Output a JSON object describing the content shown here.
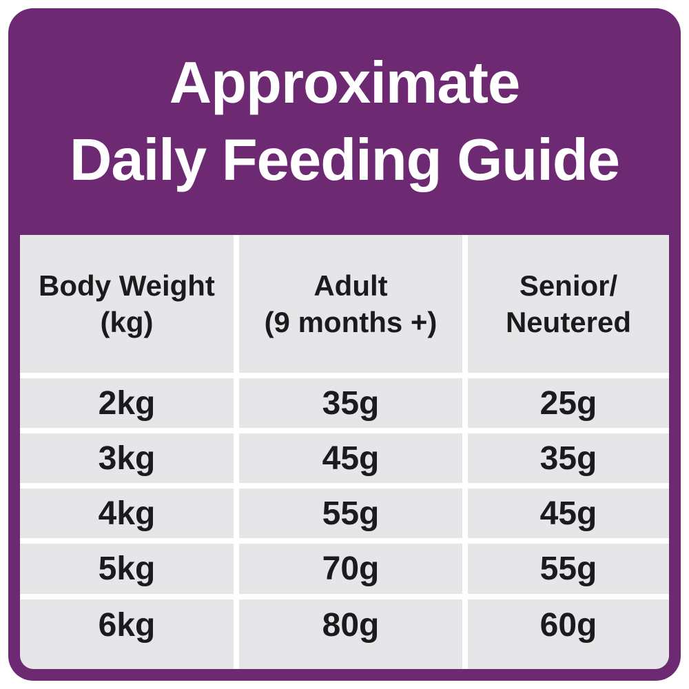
{
  "title": {
    "line1": "Approximate",
    "line2": "Daily Feeding Guide"
  },
  "colors": {
    "card_purple": "#6d2a72",
    "cell_gray": "#e6e5e7",
    "text_dark": "#1b1b1d",
    "title_white": "#ffffff"
  },
  "table": {
    "header": [
      {
        "line1": "Body Weight",
        "line2": "(kg)"
      },
      {
        "line1": "Adult",
        "line2": "(9 months +)"
      },
      {
        "line1": "Senior/",
        "line2": "Neutered"
      }
    ],
    "rows": [
      [
        "2kg",
        "35g",
        "25g"
      ],
      [
        "3kg",
        "45g",
        "35g"
      ],
      [
        "4kg",
        "55g",
        "45g"
      ],
      [
        "5kg",
        "70g",
        "55g"
      ],
      [
        "6kg",
        "80g",
        "60g"
      ]
    ]
  },
  "chart_data": {
    "type": "table",
    "title": "Approximate Daily Feeding Guide",
    "columns": [
      "Body Weight (kg)",
      "Adult (9 months +)",
      "Senior/Neutered"
    ],
    "rows": [
      [
        "2kg",
        "35g",
        "25g"
      ],
      [
        "3kg",
        "45g",
        "35g"
      ],
      [
        "4kg",
        "55g",
        "45g"
      ],
      [
        "5kg",
        "70g",
        "55g"
      ],
      [
        "6kg",
        "80g",
        "60g"
      ]
    ],
    "units": "grams per day",
    "layout": {
      "header_background": "#6d2a72",
      "cell_background": "#e6e5e7",
      "grid": "white gutters between gray cells"
    }
  }
}
